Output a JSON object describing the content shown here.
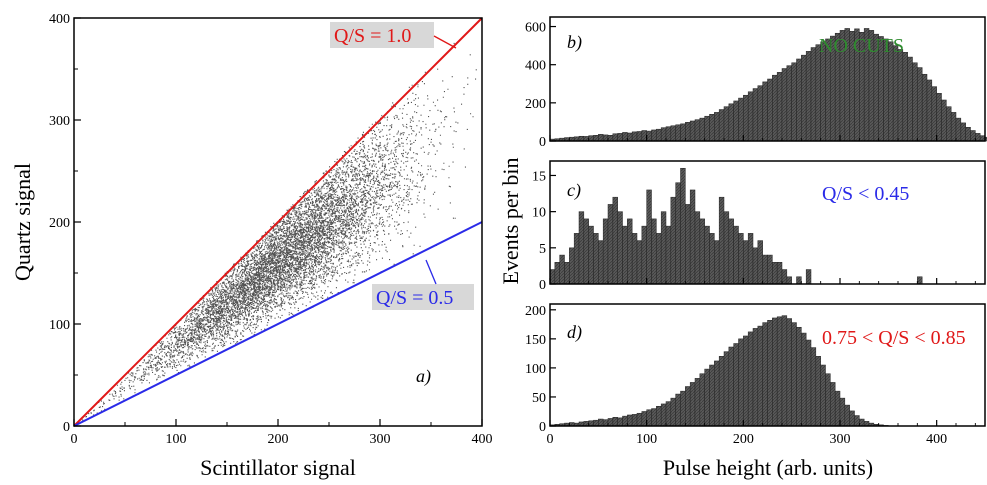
{
  "colors": {
    "axis": "#000000",
    "points": "#1a1a1a",
    "bar_fill": "#5a5a5a",
    "qs_1_line": "#e01818",
    "qs_05_line": "#2a2ae8",
    "label_box": "#d8d8d8",
    "nocuts_text": "#2e8b2e",
    "qs045_text": "#2a2ae8",
    "qs_band_text": "#e01818"
  },
  "chart_data": [
    {
      "id": "a",
      "type": "scatter",
      "panel_label": "a)",
      "xlabel": "Scintillator signal",
      "ylabel": "Quartz signal",
      "xlim": [
        0,
        400
      ],
      "ylim": [
        0,
        400
      ],
      "xticks": [
        0,
        100,
        200,
        300,
        400
      ],
      "yticks": [
        0,
        100,
        200,
        300,
        400
      ],
      "point_cloud": {
        "description_values": "dense cloud of events along the ratio band Q/S 0.6-1.0, peak density near S=200, Q=150",
        "n_points": 9000,
        "s_center": 210,
        "s_sigma": 62,
        "ratio_center": 0.8,
        "ratio_sigma": 0.12
      },
      "lines": [
        {
          "label": "Q/S = 1.0",
          "slope": 1.0,
          "color_key": "qs_1_line"
        },
        {
          "label": "Q/S = 0.5",
          "slope": 0.5,
          "color_key": "qs_05_line"
        }
      ]
    },
    {
      "id": "b",
      "type": "bar",
      "panel_label": "b)",
      "annotation": "NO CUTS",
      "xlim": [
        0,
        450
      ],
      "ylim": [
        0,
        650
      ],
      "yticks": [
        0,
        200,
        400,
        600
      ],
      "bin_width": 5,
      "values": [
        10,
        12,
        15,
        18,
        20,
        22,
        25,
        24,
        28,
        30,
        35,
        32,
        30,
        38,
        40,
        45,
        42,
        48,
        50,
        55,
        52,
        58,
        62,
        70,
        75,
        80,
        85,
        90,
        98,
        105,
        112,
        120,
        130,
        140,
        150,
        165,
        180,
        195,
        210,
        225,
        240,
        258,
        275,
        290,
        310,
        325,
        345,
        360,
        380,
        395,
        410,
        430,
        450,
        470,
        490,
        505,
        520,
        535,
        550,
        565,
        580,
        590,
        575,
        588,
        570,
        590,
        580,
        560,
        548,
        535,
        520,
        500,
        480,
        465,
        440,
        410,
        385,
        350,
        320,
        285,
        250,
        215,
        180,
        150,
        120,
        95,
        72,
        55,
        40,
        28,
        20,
        14,
        10,
        6,
        4,
        3,
        2,
        1,
        1,
        0
      ]
    },
    {
      "id": "c",
      "type": "bar",
      "panel_label": "c)",
      "annotation": "Q/S < 0.45",
      "xlim": [
        0,
        450
      ],
      "ylim": [
        0,
        17
      ],
      "yticks": [
        0,
        5,
        10,
        15
      ],
      "bin_width": 5,
      "values": [
        2,
        3,
        4,
        3,
        5,
        7,
        10,
        9,
        8,
        7,
        6,
        9,
        11,
        12,
        10,
        8,
        9,
        7,
        6,
        8,
        13,
        9,
        7,
        10,
        8,
        12,
        14,
        16,
        11,
        13,
        10,
        9,
        8,
        7,
        6,
        12,
        10,
        9,
        8,
        7,
        6,
        7,
        5,
        6,
        4,
        4,
        3,
        3,
        2,
        1,
        0,
        1,
        0,
        2,
        0,
        0,
        0,
        0,
        0,
        0,
        0,
        0,
        0,
        0,
        0,
        0,
        0,
        0,
        0,
        0,
        0,
        0,
        0,
        0,
        0,
        0,
        1,
        0,
        0,
        0,
        0,
        0,
        0,
        0,
        0,
        0,
        0,
        0,
        0,
        0
      ]
    },
    {
      "id": "d",
      "type": "bar",
      "panel_label": "d)",
      "annotation": "0.75 < Q/S < 0.85",
      "xlabel": "Pulse height (arb. units)",
      "shared_ylabel": "Events per bin",
      "xlim": [
        0,
        450
      ],
      "ylim": [
        0,
        210
      ],
      "xticks": [
        0,
        100,
        200,
        300,
        400
      ],
      "yticks": [
        0,
        50,
        100,
        150,
        200
      ],
      "bin_width": 5,
      "values": [
        2,
        3,
        4,
        5,
        6,
        5,
        7,
        8,
        9,
        10,
        12,
        11,
        13,
        15,
        14,
        17,
        19,
        20,
        22,
        25,
        28,
        30,
        34,
        38,
        42,
        48,
        55,
        60,
        68,
        75,
        82,
        90,
        98,
        105,
        112,
        120,
        128,
        136,
        142,
        150,
        155,
        162,
        168,
        172,
        178,
        182,
        186,
        188,
        190,
        185,
        178,
        170,
        160,
        148,
        135,
        120,
        105,
        90,
        75,
        60,
        48,
        36,
        26,
        18,
        12,
        8,
        5,
        3,
        2,
        1,
        0,
        0,
        0,
        0,
        0,
        0,
        0,
        0,
        0,
        0,
        0,
        0,
        0,
        0,
        0,
        0,
        0,
        0,
        0,
        0
      ]
    }
  ]
}
